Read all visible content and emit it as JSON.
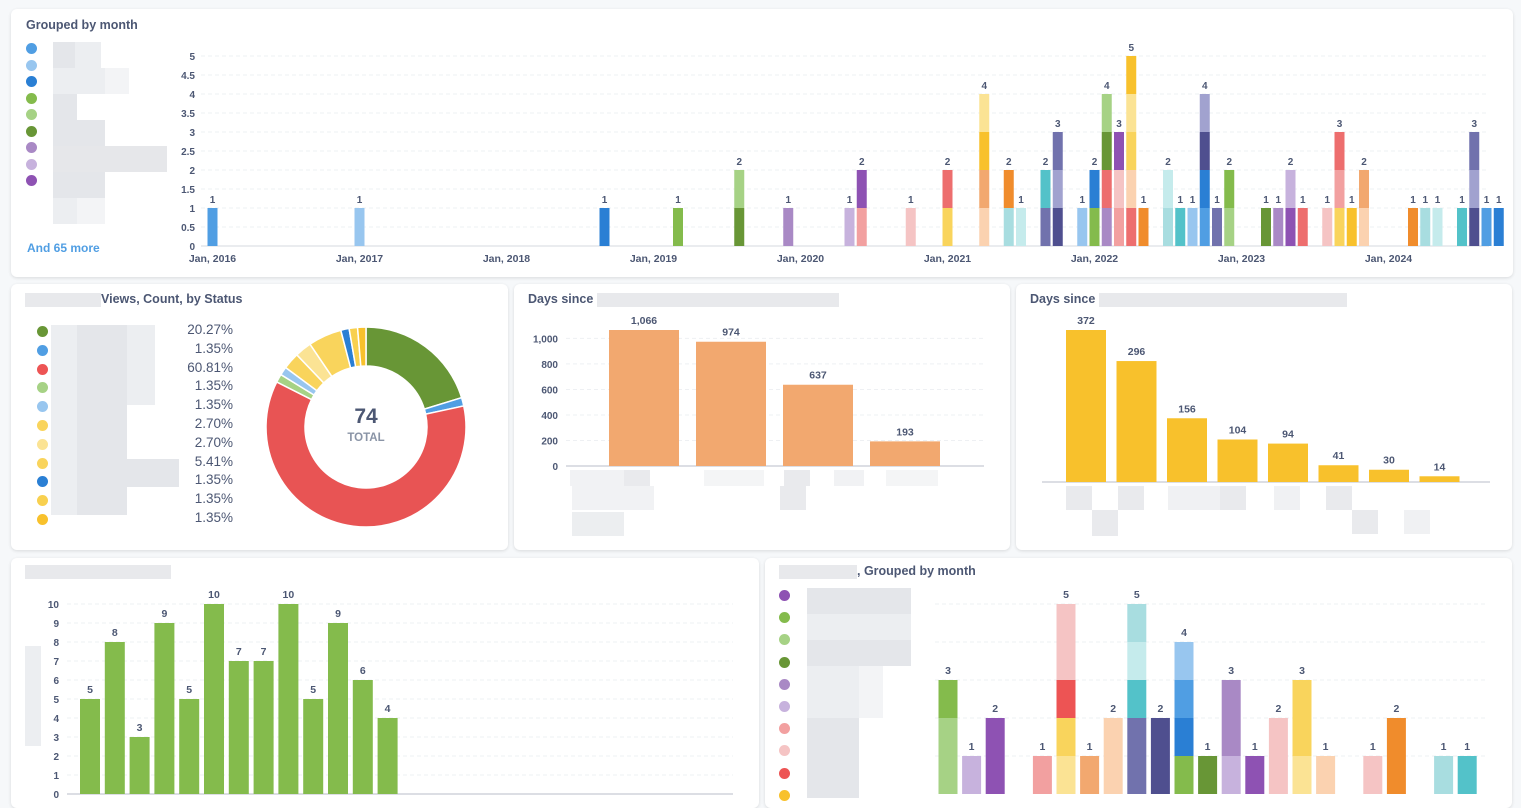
{
  "card1": {
    "title": "Grouped by month",
    "more": "And 65 more",
    "legend_colors": [
      "#509ee3",
      "#98c6ef",
      "#2a7fd4",
      "#84bb4c",
      "#a6d285",
      "#689636",
      "#a989c5",
      "#c7b2dd",
      "#8e52b3"
    ],
    "chart_data": {
      "type": "bar",
      "stacked": true,
      "title": "Grouped by month",
      "ylim": [
        0,
        5
      ],
      "yticks": [
        "0",
        "0.5",
        "1",
        "1.5",
        "2",
        "2.5",
        "3",
        "3.5",
        "4",
        "4.5",
        "5"
      ],
      "xticks": [
        "Jan, 2016",
        "Jan, 2017",
        "Jan, 2018",
        "Jan, 2019",
        "Jan, 2020",
        "Jan, 2021",
        "Jan, 2022",
        "Jan, 2023",
        "Jan, 2024"
      ],
      "bars": [
        {
          "m": 0,
          "total": "1",
          "segs": [
            [
              "#509ee3",
              1
            ]
          ]
        },
        {
          "m": 12,
          "total": "1",
          "segs": [
            [
              "#98c6ef",
              1
            ]
          ]
        },
        {
          "m": 32,
          "total": "1",
          "segs": [
            [
              "#2a7fd4",
              1
            ]
          ]
        },
        {
          "m": 38,
          "total": "1",
          "segs": [
            [
              "#84bb4c",
              1
            ]
          ]
        },
        {
          "m": 43,
          "total": "2",
          "segs": [
            [
              "#689636",
              1
            ],
            [
              "#a6d285",
              1
            ]
          ]
        },
        {
          "m": 47,
          "total": "1",
          "segs": [
            [
              "#a989c5",
              1
            ]
          ]
        },
        {
          "m": 52,
          "total": "1",
          "segs": [
            [
              "#c7b2dd",
              1
            ]
          ]
        },
        {
          "m": 53,
          "total": "2",
          "segs": [
            [
              "#f2a0a0",
              1
            ],
            [
              "#8e52b3",
              1
            ]
          ]
        },
        {
          "m": 57,
          "total": "1",
          "segs": [
            [
              "#f5c4c4",
              1
            ]
          ]
        },
        {
          "m": 60,
          "total": "2",
          "segs": [
            [
              "#f9d45c",
              1
            ],
            [
              "#ed6e6e",
              1
            ]
          ]
        },
        {
          "m": 63,
          "total": "4",
          "segs": [
            [
              "#fbd2b0",
              1
            ],
            [
              "#f2a86f",
              1
            ],
            [
              "#f8c12c",
              1
            ],
            [
              "#fbe394",
              1
            ]
          ]
        },
        {
          "m": 65,
          "total": "2",
          "segs": [
            [
              "#a8dde0",
              1
            ],
            [
              "#f08c2c",
              1
            ]
          ]
        },
        {
          "m": 66,
          "total": "1",
          "segs": [
            [
              "#c5ebec",
              1
            ]
          ]
        },
        {
          "m": 68,
          "total": "2",
          "segs": [
            [
              "#7172ad",
              1
            ],
            [
              "#53c2c9",
              1
            ]
          ]
        },
        {
          "m": 69,
          "total": "3",
          "segs": [
            [
              "#4f4f8f",
              1
            ],
            [
              "#a1a2cf",
              1
            ],
            [
              "#7172ad",
              1
            ]
          ]
        },
        {
          "m": 71,
          "total": "1",
          "segs": [
            [
              "#98c6ef",
              1
            ]
          ]
        },
        {
          "m": 72,
          "total": "2",
          "segs": [
            [
              "#84bb4c",
              1
            ],
            [
              "#2a7fd4",
              1
            ]
          ]
        },
        {
          "m": 73,
          "total": "4",
          "segs": [
            [
              "#a989c5",
              1
            ],
            [
              "#ed6e6e",
              1
            ],
            [
              "#689636",
              1
            ],
            [
              "#a6d285",
              1
            ]
          ]
        },
        {
          "m": 74,
          "total": "3",
          "segs": [
            [
              "#f2a0a0",
              1
            ],
            [
              "#f5c4c4",
              1
            ],
            [
              "#8e52b3",
              1
            ]
          ]
        },
        {
          "m": 75,
          "total": "5",
          "segs": [
            [
              "#ed6e6e",
              1
            ],
            [
              "#fbd2b0",
              1
            ],
            [
              "#f9d45c",
              1
            ],
            [
              "#fbe394",
              1
            ],
            [
              "#f8c12c",
              1
            ]
          ]
        },
        {
          "m": 76,
          "total": "1",
          "segs": [
            [
              "#f08c2c",
              1
            ]
          ]
        },
        {
          "m": 78,
          "total": "2",
          "segs": [
            [
              "#a8dde0",
              1
            ],
            [
              "#c5ebec",
              1
            ]
          ]
        },
        {
          "m": 79,
          "total": "1",
          "segs": [
            [
              "#53c2c9",
              1
            ]
          ]
        },
        {
          "m": 80,
          "total": "1",
          "segs": [
            [
              "#98c6ef",
              1
            ]
          ]
        },
        {
          "m": 81,
          "total": "4",
          "segs": [
            [
              "#509ee3",
              1
            ],
            [
              "#2a7fd4",
              1
            ],
            [
              "#4f4f8f",
              1
            ],
            [
              "#a1a2cf",
              1
            ]
          ]
        },
        {
          "m": 82,
          "total": "1",
          "segs": [
            [
              "#7172ad",
              1
            ]
          ]
        },
        {
          "m": 83,
          "total": "2",
          "segs": [
            [
              "#a6d285",
              1
            ],
            [
              "#84bb4c",
              1
            ]
          ]
        },
        {
          "m": 86,
          "total": "1",
          "segs": [
            [
              "#689636",
              1
            ]
          ]
        },
        {
          "m": 87,
          "total": "1",
          "segs": [
            [
              "#a989c5",
              1
            ]
          ]
        },
        {
          "m": 88,
          "total": "2",
          "segs": [
            [
              "#8e52b3",
              1
            ],
            [
              "#c7b2dd",
              1
            ]
          ]
        },
        {
          "m": 89,
          "total": "1",
          "segs": [
            [
              "#ed6e6e",
              1
            ]
          ]
        },
        {
          "m": 91,
          "total": "1",
          "segs": [
            [
              "#f5c4c4",
              1
            ]
          ]
        },
        {
          "m": 92,
          "total": "3",
          "segs": [
            [
              "#f9d45c",
              1
            ],
            [
              "#f2a0a0",
              1
            ],
            [
              "#ed6e6e",
              1
            ]
          ]
        },
        {
          "m": 93,
          "total": "1",
          "segs": [
            [
              "#f8c12c",
              1
            ]
          ]
        },
        {
          "m": 94,
          "total": "2",
          "segs": [
            [
              "#fbd2b0",
              1
            ],
            [
              "#f2a86f",
              1
            ]
          ]
        },
        {
          "m": 98,
          "total": "1",
          "segs": [
            [
              "#f08c2c",
              1
            ]
          ]
        },
        {
          "m": 99,
          "total": "1",
          "segs": [
            [
              "#a8dde0",
              1
            ]
          ]
        },
        {
          "m": 100,
          "total": "1",
          "segs": [
            [
              "#c5ebec",
              1
            ]
          ]
        },
        {
          "m": 102,
          "total": "1",
          "segs": [
            [
              "#53c2c9",
              1
            ]
          ]
        },
        {
          "m": 103,
          "total": "3",
          "segs": [
            [
              "#4f4f8f",
              1
            ],
            [
              "#a1a2cf",
              1
            ],
            [
              "#7172ad",
              1
            ]
          ]
        },
        {
          "m": 104,
          "total": "1",
          "segs": [
            [
              "#509ee3",
              1
            ]
          ]
        },
        {
          "m": 105,
          "total": "1",
          "segs": [
            [
              "#2a7fd4",
              1
            ]
          ]
        }
      ]
    }
  },
  "card2": {
    "title": "Views, Count, by Status",
    "total_value": "74",
    "total_label": "TOTAL",
    "legend": [
      {
        "pct": "20.27%",
        "color": "#689636"
      },
      {
        "pct": "1.35%",
        "color": "#509ee3"
      },
      {
        "pct": "60.81%",
        "color": "#ed5454"
      },
      {
        "pct": "1.35%",
        "color": "#a6d285"
      },
      {
        "pct": "1.35%",
        "color": "#98c6ef"
      },
      {
        "pct": "2.70%",
        "color": "#f9d45c"
      },
      {
        "pct": "2.70%",
        "color": "#fbe394"
      },
      {
        "pct": "5.41%",
        "color": "#f9d45c"
      },
      {
        "pct": "1.35%",
        "color": "#2a7fd4"
      },
      {
        "pct": "1.35%",
        "color": "#f8d04f"
      },
      {
        "pct": "1.35%",
        "color": "#f8c12c"
      }
    ],
    "chart_data": {
      "type": "pie",
      "donut": true,
      "total": 74,
      "slices": [
        {
          "value": 15,
          "color": "#689636"
        },
        {
          "value": 1,
          "color": "#509ee3"
        },
        {
          "value": 45,
          "color": "#e85454"
        },
        {
          "value": 1,
          "color": "#a6d285"
        },
        {
          "value": 1,
          "color": "#98c6ef"
        },
        {
          "value": 2,
          "color": "#f9d45c"
        },
        {
          "value": 2,
          "color": "#fbe394"
        },
        {
          "value": 4,
          "color": "#f9d45c"
        },
        {
          "value": 1,
          "color": "#2a7fd4"
        },
        {
          "value": 1,
          "color": "#f8d04f"
        },
        {
          "value": 1,
          "color": "#f8c12c"
        }
      ]
    }
  },
  "card3": {
    "title": "Days since",
    "chart_data": {
      "type": "bar",
      "color": "#f2a86f",
      "ylim": [
        0,
        1066
      ],
      "yticks": [
        "0",
        "200",
        "400",
        "600",
        "800",
        "1,000"
      ],
      "values": [
        1066,
        974,
        637,
        193
      ],
      "labels": [
        "1,066",
        "974",
        "637",
        "193"
      ]
    }
  },
  "card4": {
    "title": "Days since",
    "chart_data": {
      "type": "bar",
      "color": "#f8c12c",
      "ylim": [
        0,
        372
      ],
      "values": [
        372,
        296,
        156,
        104,
        94,
        41,
        30,
        14
      ],
      "labels": [
        "372",
        "296",
        "156",
        "104",
        "94",
        "41",
        "30",
        "14"
      ]
    }
  },
  "card5": {
    "chart_data": {
      "type": "bar",
      "color": "#84bb4c",
      "ylim": [
        0,
        10
      ],
      "yticks": [
        "0",
        "1",
        "2",
        "3",
        "4",
        "5",
        "6",
        "7",
        "8",
        "9",
        "10"
      ],
      "values": [
        5,
        8,
        3,
        9,
        5,
        10,
        7,
        7,
        10,
        5,
        9,
        6,
        4
      ],
      "labels": [
        "5",
        "8",
        "3",
        "9",
        "5",
        "10",
        "7",
        "7",
        "10",
        "5",
        "9",
        "6",
        "4"
      ]
    }
  },
  "card6": {
    "title": ", Grouped by month",
    "legend_colors": [
      "#8e52b3",
      "#84bb4c",
      "#a6d285",
      "#689636",
      "#a989c5",
      "#c7b2dd",
      "#f2a0a0",
      "#f5c4c4",
      "#ed5454",
      "#f8c12c"
    ],
    "chart_data": {
      "type": "bar",
      "stacked": true,
      "ylim": [
        0,
        5
      ],
      "bars": [
        {
          "i": 0,
          "total": "3",
          "segs": [
            [
              "#a6d285",
              2
            ],
            [
              "#84bb4c",
              1
            ]
          ]
        },
        {
          "i": 1,
          "total": "1",
          "segs": [
            [
              "#c7b2dd",
              1
            ]
          ]
        },
        {
          "i": 2,
          "total": "2",
          "segs": [
            [
              "#8e52b3",
              2
            ]
          ]
        },
        {
          "i": 4,
          "total": "1",
          "segs": [
            [
              "#f2a0a0",
              1
            ]
          ]
        },
        {
          "i": 5,
          "total": "5",
          "segs": [
            [
              "#fbe394",
              1
            ],
            [
              "#f9d45c",
              1
            ],
            [
              "#ed5454",
              1
            ],
            [
              "#f5c4c4",
              2
            ]
          ]
        },
        {
          "i": 6,
          "total": "1",
          "segs": [
            [
              "#f2a86f",
              1
            ]
          ]
        },
        {
          "i": 7,
          "total": "2",
          "segs": [
            [
              "#fbd2b0",
              2
            ]
          ]
        },
        {
          "i": 8,
          "total": "5",
          "segs": [
            [
              "#7172ad",
              2
            ],
            [
              "#53c2c9",
              1
            ],
            [
              "#c5ebec",
              1
            ],
            [
              "#a8dde0",
              1
            ]
          ]
        },
        {
          "i": 9,
          "total": "2",
          "segs": [
            [
              "#4f4f8f",
              2
            ]
          ]
        },
        {
          "i": 10,
          "total": "4",
          "segs": [
            [
              "#84bb4c",
              1
            ],
            [
              "#2a7fd4",
              1
            ],
            [
              "#509ee3",
              1
            ],
            [
              "#98c6ef",
              1
            ]
          ]
        },
        {
          "i": 11,
          "total": "1",
          "segs": [
            [
              "#689636",
              1
            ]
          ]
        },
        {
          "i": 12,
          "total": "3",
          "segs": [
            [
              "#c7b2dd",
              1
            ],
            [
              "#a989c5",
              2
            ]
          ]
        },
        {
          "i": 13,
          "total": "1",
          "segs": [
            [
              "#8e52b3",
              1
            ]
          ]
        },
        {
          "i": 14,
          "total": "2",
          "segs": [
            [
              "#f5c4c4",
              2
            ]
          ]
        },
        {
          "i": 15,
          "total": "3",
          "segs": [
            [
              "#fbe394",
              1
            ],
            [
              "#f9d45c",
              2
            ]
          ]
        },
        {
          "i": 16,
          "total": "1",
          "segs": [
            [
              "#fbd2b0",
              1
            ]
          ]
        },
        {
          "i": 18,
          "total": "1",
          "segs": [
            [
              "#f5c4c4",
              1
            ]
          ]
        },
        {
          "i": 19,
          "total": "2",
          "segs": [
            [
              "#f08c2c",
              2
            ]
          ]
        },
        {
          "i": 21,
          "total": "1",
          "segs": [
            [
              "#a8dde0",
              1
            ]
          ]
        },
        {
          "i": 22,
          "total": "1",
          "segs": [
            [
              "#53c2c9",
              1
            ]
          ]
        }
      ]
    }
  }
}
